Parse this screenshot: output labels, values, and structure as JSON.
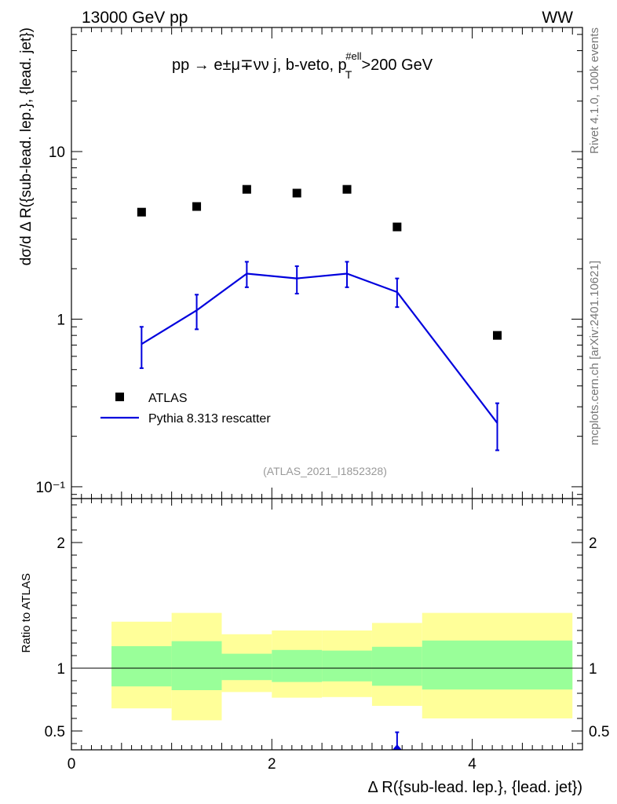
{
  "header": {
    "energy_label": "13000 GeV pp",
    "process_tag": "WW",
    "side_label_top": "Rivet 4.1.0,  100k events",
    "side_label_bottom": "mcplots.cern.ch [arXiv:2401.10621]"
  },
  "chart_data": [
    {
      "name": "main",
      "type": "scatter",
      "title": "pp  →  e±μ∓νν j, b-veto, p",
      "title_sup": "#ell",
      "title_sub": "T",
      "title_tail": ">200 GeV",
      "analysis_tag": "(ATLAS_2021_I1852328)",
      "ylabel": "dσ/d Δ R({sub-lead. lep.}, {lead. jet})",
      "yscale": "log",
      "ylim": [
        0.085,
        55
      ],
      "xlim": [
        0,
        5.1
      ],
      "y_ticks": [
        {
          "value": 10,
          "label": "10"
        },
        {
          "value": 1,
          "label": "1"
        },
        {
          "value": 0.1,
          "label": "10⁻¹"
        }
      ],
      "legend": [
        {
          "label": "ATLAS",
          "marker": "square",
          "color": "#000000"
        },
        {
          "label": "Pythia 8.313 rescatter",
          "marker": "line",
          "color": "#0000dd"
        }
      ],
      "series": [
        {
          "name": "ATLAS",
          "x": [
            0.7,
            1.25,
            1.75,
            2.25,
            2.75,
            3.25,
            4.25
          ],
          "values": [
            4.35,
            4.7,
            5.95,
            5.65,
            5.95,
            3.55,
            0.8
          ]
        },
        {
          "name": "Pythia 8.313 rescatter",
          "x": [
            0.7,
            1.25,
            1.75,
            2.25,
            2.75,
            3.25,
            4.25
          ],
          "values": [
            0.71,
            1.13,
            1.87,
            1.75,
            1.87,
            1.45,
            0.24
          ],
          "err_low": [
            0.51,
            0.87,
            1.55,
            1.42,
            1.55,
            1.18,
            0.165
          ],
          "err_high": [
            0.9,
            1.4,
            2.2,
            2.07,
            2.2,
            1.75,
            0.315
          ]
        }
      ]
    },
    {
      "name": "ratio",
      "type": "area",
      "ylabel": "Ratio to ATLAS",
      "ylim": [
        0.35,
        2.35
      ],
      "xlim": [
        0,
        5.1
      ],
      "xlabel": "Δ R({sub-lead. lep.}, {lead. jet})",
      "x_ticks": [
        {
          "value": 0,
          "label": "0"
        },
        {
          "value": 2,
          "label": "2"
        },
        {
          "value": 4,
          "label": "4"
        }
      ],
      "y_ticks": [
        {
          "value": 2,
          "label": "2"
        },
        {
          "value": 1,
          "label": "1"
        },
        {
          "value": 0.5,
          "label": "0.5"
        }
      ],
      "bins": [
        0.4,
        1.0,
        1.5,
        2.0,
        2.5,
        3.0,
        3.5,
        5.0
      ],
      "band_inner_low": [
        0.855,
        0.825,
        0.905,
        0.89,
        0.895,
        0.86,
        0.83
      ],
      "band_inner_high": [
        1.175,
        1.215,
        1.115,
        1.145,
        1.14,
        1.17,
        1.22
      ],
      "band_outer_low": [
        0.68,
        0.585,
        0.81,
        0.765,
        0.77,
        0.7,
        0.6
      ],
      "band_outer_high": [
        1.37,
        1.44,
        1.27,
        1.3,
        1.3,
        1.36,
        1.44
      ],
      "ratio_points": [
        {
          "x": 3.25,
          "value": 0.34,
          "err_high": 0.49
        }
      ]
    }
  ]
}
